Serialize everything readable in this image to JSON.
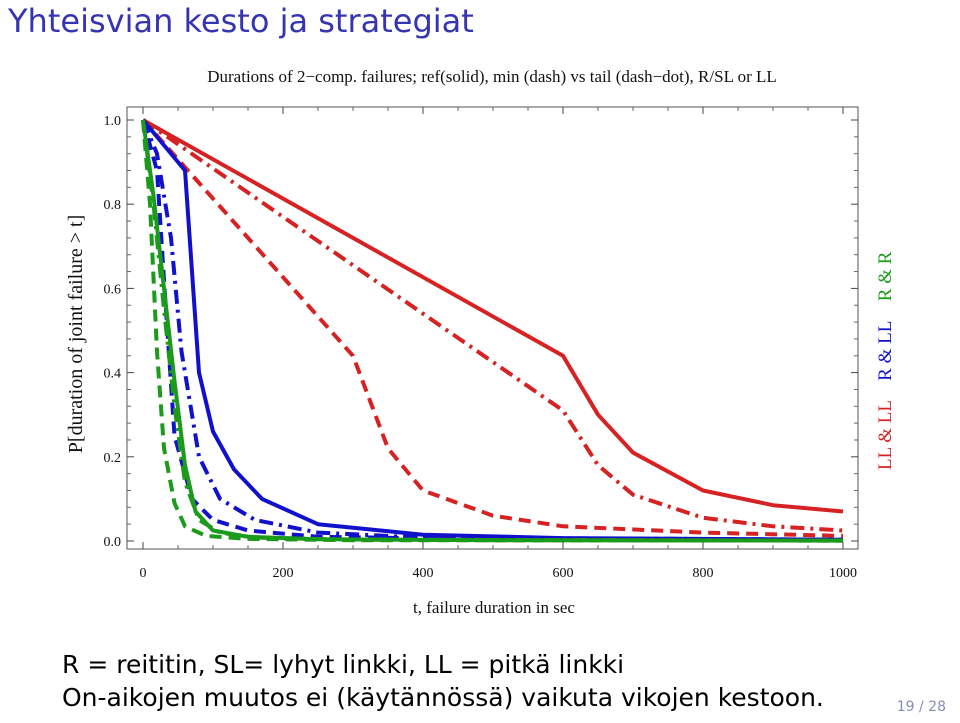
{
  "slide": {
    "title": "Yhteisvian kesto ja strategiat",
    "line1": "R = reititin, SL= lyhyt linkki, LL = pitkä linkki",
    "line2": "On-aikojen muutos ei (käytännössä) vaikuta vikojen kestoon.",
    "page": "19 / 28"
  },
  "colors": {
    "title": "#3535b3",
    "red": "#d62222",
    "blue": "#1111cc",
    "green": "#1c9a1c"
  },
  "chart_data": {
    "type": "line",
    "title": "Durations of 2−comp. failures; ref(solid), min (dash) vs tail (dash−dot), R/SL or LL",
    "xlabel": "t, failure duration in sec",
    "ylabel": "P[duration of joint failure > t]",
    "xlim": [
      0,
      1000
    ],
    "ylim": [
      0,
      1.0
    ],
    "xticks": [
      "0",
      "200",
      "400",
      "600",
      "800",
      "1000"
    ],
    "yticks": [
      "0.0",
      "0.2",
      "0.4",
      "0.6",
      "0.8",
      "1.0"
    ],
    "legend": [
      {
        "label": "LL & LL",
        "color": "#d62222"
      },
      {
        "label": "R & LL",
        "color": "#1111cc"
      },
      {
        "label": "R & R",
        "color": "#1c9a1c"
      }
    ],
    "series": [
      {
        "name": "LL & LL ref",
        "color": "red",
        "style": "solid",
        "x": [
          0,
          600,
          650,
          700,
          800,
          900,
          1000
        ],
        "y": [
          1.0,
          0.44,
          0.3,
          0.21,
          0.12,
          0.085,
          0.07
        ]
      },
      {
        "name": "LL & LL tail",
        "color": "red",
        "style": "dashdot",
        "x": [
          0,
          600,
          650,
          700,
          800,
          900,
          1000
        ],
        "y": [
          1.0,
          0.31,
          0.18,
          0.11,
          0.055,
          0.035,
          0.025
        ]
      },
      {
        "name": "LL & LL min",
        "color": "red",
        "style": "dash",
        "x": [
          0,
          300,
          350,
          400,
          500,
          600,
          800,
          1000
        ],
        "y": [
          1.0,
          0.44,
          0.22,
          0.12,
          0.06,
          0.035,
          0.02,
          0.012
        ]
      },
      {
        "name": "R & LL ref",
        "color": "blue",
        "style": "solid",
        "x": [
          0,
          60,
          80,
          100,
          130,
          170,
          250,
          400,
          600,
          1000
        ],
        "y": [
          1.0,
          0.88,
          0.4,
          0.26,
          0.17,
          0.1,
          0.04,
          0.015,
          0.007,
          0.003
        ]
      },
      {
        "name": "R & LL tail",
        "color": "blue",
        "style": "dashdot",
        "x": [
          0,
          20,
          40,
          55,
          80,
          110,
          160,
          250,
          400,
          1000
        ],
        "y": [
          1.0,
          0.92,
          0.72,
          0.45,
          0.2,
          0.1,
          0.05,
          0.02,
          0.008,
          0.003
        ]
      },
      {
        "name": "R & LL min",
        "color": "blue",
        "style": "dash",
        "x": [
          0,
          20,
          30,
          45,
          70,
          100,
          150,
          250,
          500,
          1000
        ],
        "y": [
          1.0,
          0.88,
          0.62,
          0.25,
          0.1,
          0.05,
          0.025,
          0.01,
          0.004,
          0.002
        ]
      },
      {
        "name": "R & R ref",
        "color": "green",
        "style": "solid",
        "x": [
          0,
          15,
          30,
          45,
          60,
          75,
          100,
          150,
          250,
          500,
          1000
        ],
        "y": [
          1.0,
          0.82,
          0.6,
          0.38,
          0.18,
          0.07,
          0.025,
          0.01,
          0.004,
          0.002,
          0.001
        ]
      },
      {
        "name": "R & R tail",
        "color": "green",
        "style": "dashdot",
        "x": [
          0,
          15,
          30,
          45,
          60,
          80,
          110,
          160,
          300,
          1000
        ],
        "y": [
          1.0,
          0.8,
          0.55,
          0.32,
          0.14,
          0.05,
          0.02,
          0.008,
          0.003,
          0.001
        ]
      },
      {
        "name": "R & R min",
        "color": "green",
        "style": "dash",
        "x": [
          0,
          10,
          20,
          30,
          45,
          60,
          90,
          150,
          300,
          1000
        ],
        "y": [
          1.0,
          0.8,
          0.45,
          0.22,
          0.09,
          0.035,
          0.012,
          0.005,
          0.002,
          0.001
        ]
      }
    ]
  }
}
